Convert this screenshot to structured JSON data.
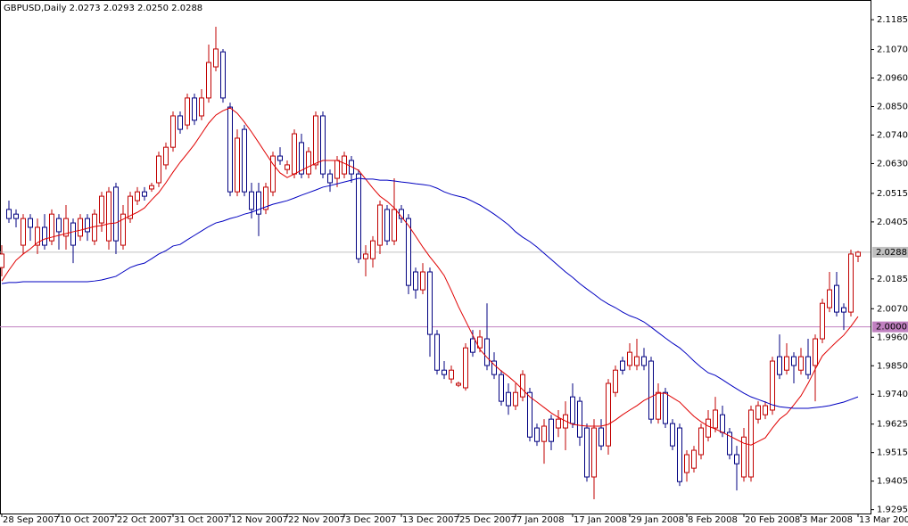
{
  "chart_data": {
    "type": "candlestick",
    "title": "GBPUSD,Daily  2.0273 2.0293 2.0250 2.0288",
    "categories": [
      "28 Sep 2007",
      null,
      null,
      null,
      null,
      null,
      null,
      null,
      "10 Oct 2007",
      null,
      null,
      null,
      null,
      null,
      null,
      null,
      "22 Oct 2007",
      null,
      null,
      null,
      null,
      null,
      null,
      null,
      "31 Oct 2007",
      null,
      null,
      null,
      null,
      null,
      null,
      null,
      "12 Nov 2007",
      null,
      null,
      null,
      null,
      null,
      null,
      null,
      "22 Nov 2007",
      null,
      null,
      null,
      null,
      null,
      null,
      null,
      "3 Dec 2007",
      null,
      null,
      null,
      null,
      null,
      null,
      null,
      "13 Dec 2007",
      null,
      null,
      null,
      null,
      null,
      null,
      null,
      "25 Dec 2007",
      null,
      null,
      null,
      null,
      null,
      null,
      null,
      "7 Jan 2008",
      null,
      null,
      null,
      null,
      null,
      null,
      null,
      "17 Jan 2008",
      null,
      null,
      null,
      null,
      null,
      null,
      null,
      "29 Jan 2008",
      null,
      null,
      null,
      null,
      null,
      null,
      null,
      "8 Feb 2008",
      null,
      null,
      null,
      null,
      null,
      null,
      null,
      "20 Feb 2008",
      null,
      null,
      null,
      null,
      null,
      null,
      null,
      "3 Mar 2008",
      null,
      null,
      null,
      null,
      null,
      null,
      null,
      "13 Mar 2008"
    ],
    "open": [
      2.0229,
      2.0453,
      2.0435,
      2.0315,
      2.0418,
      2.0315,
      2.0384,
      2.0332,
      2.0418,
      2.035,
      2.0401,
      2.035,
      2.0418,
      2.0332,
      2.0401,
      2.0332,
      2.0539,
      2.0315,
      2.0418,
      2.0487,
      2.0521,
      2.0532,
      2.0556,
      2.0625,
      2.0693,
      2.0814,
      2.0779,
      2.0883,
      2.0814,
      2.0883,
      2.1003,
      2.1061,
      2.0848,
      2.0521,
      2.0762,
      2.0521,
      2.0521,
      2.0453,
      2.0521,
      2.0659,
      2.0607,
      2.059,
      2.0711,
      2.059,
      2.0625,
      2.0814,
      2.059,
      2.0573,
      2.059,
      2.0642,
      2.059,
      2.0263,
      2.0263,
      2.0315,
      2.0453,
      2.0332,
      2.0453,
      2.0418,
      2.0212,
      2.0143,
      2.0212,
      1.9971,
      1.9833,
      1.9799,
      1.9775,
      1.9765,
      1.9954,
      1.9919,
      1.9954,
      1.9868,
      1.9816,
      1.9747,
      1.9696,
      1.973,
      1.9747,
      1.961,
      1.9558,
      1.9644,
      1.961,
      1.961,
      1.973,
      1.9713,
      1.961,
      1.9421,
      1.961,
      1.9541,
      1.9747,
      1.9868,
      1.9851,
      1.9851,
      1.9885,
      1.9868,
      1.9644,
      1.9747,
      1.9627,
      1.961,
      1.9438,
      1.9455,
      1.9507,
      1.9575,
      1.961,
      1.9661,
      1.9593,
      1.9507,
      1.9421,
      1.9421,
      1.9644,
      1.9661,
      1.9679,
      1.9885,
      1.9833,
      1.9885,
      1.9833,
      1.9885,
      1.9851,
      1.9954,
      2.0074,
      2.016,
      2.0074,
      2.0057,
      2.0273
    ],
    "high": [
      2.0315,
      2.0487,
      2.0453,
      2.0435,
      2.0435,
      2.0418,
      2.0435,
      2.0453,
      2.0435,
      2.047,
      2.0418,
      2.0435,
      2.0435,
      2.0453,
      2.0521,
      2.0539,
      2.0556,
      2.047,
      2.0521,
      2.0539,
      2.0539,
      2.0556,
      2.0676,
      2.0711,
      2.0831,
      2.0831,
      2.09,
      2.09,
      2.0917,
      2.1089,
      2.1158,
      2.1072,
      2.0865,
      2.0762,
      2.0779,
      2.0556,
      2.0556,
      2.0556,
      2.0676,
      2.0693,
      2.0642,
      2.0762,
      2.0745,
      2.0693,
      2.0831,
      2.0831,
      2.0607,
      2.0659,
      2.0676,
      2.0659,
      2.0607,
      2.0315,
      2.035,
      2.0487,
      2.047,
      2.0573,
      2.047,
      2.0435,
      2.0229,
      2.0246,
      2.0229,
      1.9988,
      1.9868,
      1.9851,
      1.9789,
      1.9937,
      1.9988,
      1.9988,
      2.0091,
      1.9902,
      1.9833,
      1.9782,
      1.9782,
      1.9833,
      1.9765,
      1.9627,
      1.9644,
      1.9661,
      1.9679,
      1.9713,
      1.9782,
      1.973,
      1.9627,
      1.9644,
      1.9644,
      1.9799,
      1.9851,
      1.9885,
      1.9937,
      1.9954,
      1.9919,
      1.9885,
      1.9782,
      1.9765,
      1.9644,
      1.9627,
      1.9524,
      1.9541,
      1.9627,
      1.9679,
      1.973,
      1.9696,
      1.961,
      1.9541,
      1.961,
      1.9696,
      1.9713,
      1.9713,
      1.9885,
      1.9971,
      1.9937,
      1.9902,
      1.9919,
      1.9954,
      1.9971,
      2.0109,
      2.0212,
      2.0212,
      2.0091,
      2.0298,
      2.0293
    ],
    "low": [
      2.0195,
      2.0401,
      2.0384,
      2.0281,
      2.0332,
      2.0281,
      2.0298,
      2.0315,
      2.0298,
      2.0298,
      2.0246,
      2.0332,
      2.0332,
      2.0315,
      2.0367,
      2.0298,
      2.0281,
      2.0298,
      2.0401,
      2.047,
      2.0487,
      2.0521,
      2.0539,
      2.0607,
      2.0676,
      2.0745,
      2.0762,
      2.0779,
      2.0797,
      2.0865,
      2.0986,
      2.0865,
      2.0504,
      2.0504,
      2.0504,
      2.0418,
      2.035,
      2.0435,
      2.0504,
      2.0625,
      2.059,
      2.0573,
      2.0573,
      2.0573,
      2.0607,
      2.0573,
      2.0521,
      2.0539,
      2.0573,
      2.0556,
      2.0246,
      2.0195,
      2.0229,
      2.0281,
      2.0315,
      2.0315,
      2.0401,
      2.0126,
      2.0109,
      2.0126,
      1.9885,
      1.9816,
      1.9799,
      1.9782,
      1.9768,
      1.9754,
      1.9885,
      1.9902,
      1.9833,
      1.9799,
      1.9696,
      1.9661,
      1.9679,
      1.9713,
      1.9558,
      1.9541,
      1.9472,
      1.9524,
      1.9575,
      1.9524,
      1.961,
      1.9541,
      1.9403,
      1.9335,
      1.9524,
      1.9507,
      1.973,
      1.9816,
      1.9833,
      1.9833,
      1.9833,
      1.9627,
      1.9627,
      1.961,
      1.9524,
      1.9386,
      1.9403,
      1.9438,
      1.9489,
      1.9558,
      1.9593,
      1.9575,
      1.9489,
      1.9369,
      1.9403,
      1.9403,
      1.9627,
      1.9644,
      1.9661,
      1.9799,
      1.9816,
      1.9782,
      1.9816,
      1.9799,
      1.9713,
      1.9937,
      2.0057,
      2.004,
      1.9988,
      2.004,
      2.025
    ],
    "close": [
      2.0281,
      2.0418,
      2.0418,
      2.0418,
      2.0384,
      2.0384,
      2.0315,
      2.0435,
      2.0367,
      2.0418,
      2.0315,
      2.0418,
      2.0367,
      2.0435,
      2.0504,
      2.0521,
      2.0332,
      2.0435,
      2.0504,
      2.0521,
      2.0504,
      2.0545,
      2.0659,
      2.0693,
      2.0814,
      2.0762,
      2.0883,
      2.0797,
      2.0883,
      2.102,
      2.1072,
      2.0883,
      2.0521,
      2.0728,
      2.0521,
      2.0453,
      2.0435,
      2.0539,
      2.0659,
      2.0642,
      2.0625,
      2.0745,
      2.059,
      2.0676,
      2.0814,
      2.059,
      2.0556,
      2.0642,
      2.0659,
      2.059,
      2.0263,
      2.0281,
      2.0332,
      2.047,
      2.0332,
      2.0453,
      2.0418,
      2.016,
      2.0143,
      2.0212,
      1.9971,
      1.9833,
      1.9816,
      1.9833,
      1.9782,
      1.9919,
      1.9902,
      1.9961,
      1.9851,
      1.9816,
      1.9713,
      1.9696,
      1.9747,
      1.9816,
      1.9575,
      1.9558,
      1.9617,
      1.9558,
      1.9644,
      1.9661,
      1.9627,
      1.9575,
      1.9421,
      1.961,
      1.9541,
      1.9782,
      1.9833,
      1.9833,
      1.9902,
      1.9885,
      1.9851,
      1.9644,
      1.9747,
      1.9627,
      1.9541,
      1.9403,
      1.9507,
      1.9524,
      1.961,
      1.9644,
      1.9679,
      1.9593,
      1.9507,
      1.9472,
      1.9575,
      1.9679,
      1.9696,
      1.9696,
      1.9868,
      1.9816,
      1.9885,
      1.9851,
      1.9885,
      1.9816,
      1.9954,
      2.0091,
      2.0143,
      2.0057,
      2.0057,
      2.0281,
      2.0288
    ],
    "up_color": "#c00000",
    "down_color": "#000080",
    "overlays": [
      {
        "color": "#e00000",
        "values": [
          2.0177,
          2.0219,
          2.0257,
          2.0281,
          2.0301,
          2.0325,
          2.0339,
          2.0346,
          2.0353,
          2.036,
          2.0367,
          2.0373,
          2.038,
          2.0387,
          2.0391,
          2.0398,
          2.0401,
          2.0415,
          2.0429,
          2.0442,
          2.0459,
          2.049,
          2.0518,
          2.0556,
          2.0597,
          2.0635,
          2.0669,
          2.0704,
          2.0745,
          2.0786,
          2.0817,
          2.0834,
          2.0845,
          2.0824,
          2.079,
          2.0752,
          2.0711,
          2.0669,
          2.0628,
          2.0594,
          2.0576,
          2.059,
          2.0604,
          2.0618,
          2.0631,
          2.0642,
          2.0642,
          2.0642,
          2.0631,
          2.0618,
          2.0604,
          2.057,
          2.0535,
          2.0504,
          2.0484,
          2.0459,
          2.0425,
          2.0391,
          2.035,
          2.0308,
          2.027,
          2.0236,
          2.0198,
          2.014,
          2.0078,
          2.0023,
          1.9968,
          1.9913,
          1.9882,
          1.9854,
          1.983,
          1.9809,
          1.9785,
          1.9758,
          1.973,
          1.971,
          1.9689,
          1.9668,
          1.9651,
          1.9637,
          1.9624,
          1.962,
          1.9617,
          1.9617,
          1.9617,
          1.9624,
          1.9641,
          1.9661,
          1.9679,
          1.9696,
          1.9716,
          1.973,
          1.9744,
          1.9744,
          1.9727,
          1.971,
          1.9682,
          1.9655,
          1.9634,
          1.9617,
          1.9606,
          1.9593,
          1.9579,
          1.9565,
          1.9551,
          1.9544,
          1.9558,
          1.9572,
          1.961,
          1.9644,
          1.9665,
          1.9699,
          1.9734,
          1.9782,
          1.9837,
          1.9888,
          1.9916,
          1.9943,
          1.9968,
          2.0002,
          2.004
        ]
      },
      {
        "color": "#0000c0",
        "values": [
          2.0167,
          2.0171,
          2.0171,
          2.0174,
          2.0174,
          2.0174,
          2.0174,
          2.0174,
          2.0174,
          2.0174,
          2.0174,
          2.0174,
          2.0174,
          2.0177,
          2.0181,
          2.0188,
          2.0195,
          2.0212,
          2.0229,
          2.0239,
          2.0246,
          2.0263,
          2.0281,
          2.0294,
          2.0312,
          2.0318,
          2.0336,
          2.0353,
          2.037,
          2.0387,
          2.0401,
          2.0408,
          2.0418,
          2.0425,
          2.0435,
          2.0442,
          2.0453,
          2.0463,
          2.0473,
          2.048,
          2.0487,
          2.0497,
          2.0508,
          2.0518,
          2.0528,
          2.0539,
          2.0545,
          2.0552,
          2.0559,
          2.0566,
          2.0573,
          2.057,
          2.057,
          2.0566,
          2.0566,
          2.0563,
          2.0559,
          2.0556,
          2.0552,
          2.0549,
          2.0545,
          2.0535,
          2.0521,
          2.0511,
          2.0504,
          2.0497,
          2.0484,
          2.047,
          2.0453,
          2.0435,
          2.0415,
          2.0394,
          2.0367,
          2.0346,
          2.0329,
          2.0308,
          2.0284,
          2.026,
          2.0236,
          2.0212,
          2.0191,
          2.0167,
          2.0146,
          2.0126,
          2.0105,
          2.0088,
          2.0074,
          2.0057,
          2.0043,
          2.0033,
          2.0019,
          1.9999,
          1.9978,
          1.9957,
          1.9937,
          1.9919,
          1.9895,
          1.9868,
          1.9844,
          1.9823,
          1.9813,
          1.9796,
          1.9778,
          1.9761,
          1.9744,
          1.973,
          1.972,
          1.971,
          1.9699,
          1.9692,
          1.9689,
          1.9686,
          1.9686,
          1.9686,
          1.9689,
          1.9692,
          1.9696,
          1.9703,
          1.971,
          1.972,
          1.973
        ]
      }
    ],
    "hlines": [
      {
        "value": 2.0288,
        "label": "2.0288",
        "color": "#c0c0c0"
      },
      {
        "value": 2,
        "label": "2.0000",
        "color": "#c080c0"
      }
    ],
    "ylim": [
      1.928,
      2.1261
    ],
    "yticks": [
      2.1185,
      {
        "value": 2.107,
        "label": "2.1070"
      },
      {
        "value": 2.096,
        "label": "2.0960"
      },
      {
        "value": 2.085,
        "label": "2.0850"
      },
      {
        "value": 2.074,
        "label": "2.0740"
      },
      {
        "value": 2.063,
        "label": "2.0630"
      },
      2.0515,
      2.0405,
      2.0185,
      {
        "value": 2.007,
        "label": "2.0070"
      },
      {
        "value": 1.996,
        "label": "1.9960"
      },
      {
        "value": 1.985,
        "label": "1.9850"
      },
      {
        "value": 1.974,
        "label": "1.9740"
      },
      1.9625,
      1.9515,
      1.9405,
      1.9295
    ]
  }
}
